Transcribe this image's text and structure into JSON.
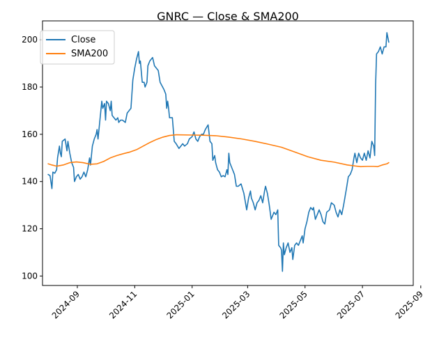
{
  "chart_data": {
    "type": "line",
    "title": "GNRC — Close & SMA200",
    "xlabel": "",
    "ylabel": "",
    "xlim": [
      "2024-07-26",
      "2025-08-24"
    ],
    "ylim": [
      96,
      208
    ],
    "grid": false,
    "legend_position": "top-left",
    "x_ticks": [
      "2024-09",
      "2024-11",
      "2025-01",
      "2025-03",
      "2025-05",
      "2025-07",
      "2025-09"
    ],
    "y_ticks": [
      100,
      120,
      140,
      160,
      180,
      200
    ],
    "series": [
      {
        "name": "Close",
        "color": "#1f77b4",
        "points": [
          [
            "2024-08-01",
            143
          ],
          [
            "2024-08-03",
            142.5
          ],
          [
            "2024-08-05",
            137
          ],
          [
            "2024-08-06",
            144
          ],
          [
            "2024-08-08",
            143.5
          ],
          [
            "2024-08-10",
            145
          ],
          [
            "2024-08-11",
            150
          ],
          [
            "2024-08-13",
            155
          ],
          [
            "2024-08-14",
            152
          ],
          [
            "2024-08-15",
            150.5
          ],
          [
            "2024-08-16",
            157
          ],
          [
            "2024-08-19",
            158
          ],
          [
            "2024-08-21",
            153
          ],
          [
            "2024-08-22",
            157
          ],
          [
            "2024-08-24",
            152
          ],
          [
            "2024-08-26",
            148
          ],
          [
            "2024-08-28",
            146
          ],
          [
            "2024-08-29",
            140
          ],
          [
            "2024-08-31",
            142
          ],
          [
            "2024-09-02",
            143
          ],
          [
            "2024-09-04",
            141
          ],
          [
            "2024-09-06",
            142
          ],
          [
            "2024-09-08",
            144
          ],
          [
            "2024-09-10",
            142
          ],
          [
            "2024-09-12",
            145
          ],
          [
            "2024-09-14",
            150
          ],
          [
            "2024-09-15",
            147
          ],
          [
            "2024-09-17",
            155
          ],
          [
            "2024-09-19",
            158
          ],
          [
            "2024-09-21",
            160
          ],
          [
            "2024-09-22",
            162
          ],
          [
            "2024-09-23",
            158
          ],
          [
            "2024-09-25",
            166
          ],
          [
            "2024-09-27",
            174
          ],
          [
            "2024-09-28",
            171
          ],
          [
            "2024-09-30",
            173
          ],
          [
            "2024-10-01",
            166
          ],
          [
            "2024-10-02",
            174
          ],
          [
            "2024-10-04",
            173
          ],
          [
            "2024-10-06",
            170
          ],
          [
            "2024-10-07",
            174
          ],
          [
            "2024-10-08",
            168
          ],
          [
            "2024-10-10",
            167
          ],
          [
            "2024-10-12",
            166
          ],
          [
            "2024-10-14",
            167
          ],
          [
            "2024-10-15",
            165
          ],
          [
            "2024-10-17",
            166
          ],
          [
            "2024-10-19",
            166
          ],
          [
            "2024-10-22",
            165
          ],
          [
            "2024-10-24",
            169
          ],
          [
            "2024-10-28",
            171
          ],
          [
            "2024-10-30",
            183
          ],
          [
            "2024-11-01",
            188
          ],
          [
            "2024-11-03",
            192
          ],
          [
            "2024-11-05",
            195
          ],
          [
            "2024-11-06",
            190
          ],
          [
            "2024-11-07",
            191
          ],
          [
            "2024-11-09",
            182
          ],
          [
            "2024-11-11",
            182
          ],
          [
            "2024-11-12",
            180
          ],
          [
            "2024-11-14",
            182
          ],
          [
            "2024-11-15",
            189
          ],
          [
            "2024-11-17",
            191
          ],
          [
            "2024-11-19",
            192
          ],
          [
            "2024-11-20",
            192.5
          ],
          [
            "2024-11-22",
            189
          ],
          [
            "2024-11-24",
            188
          ],
          [
            "2024-11-26",
            187
          ],
          [
            "2024-11-28",
            182
          ],
          [
            "2024-12-02",
            179
          ],
          [
            "2024-12-04",
            177
          ],
          [
            "2024-12-05",
            171
          ],
          [
            "2024-12-06",
            174
          ],
          [
            "2024-12-07",
            171
          ],
          [
            "2024-12-08",
            167
          ],
          [
            "2024-12-11",
            167
          ],
          [
            "2024-12-13",
            157
          ],
          [
            "2024-12-15",
            156
          ],
          [
            "2024-12-18",
            154
          ],
          [
            "2024-12-20",
            155
          ],
          [
            "2024-12-22",
            156
          ],
          [
            "2024-12-24",
            155
          ],
          [
            "2024-12-27",
            156
          ],
          [
            "2024-12-29",
            158
          ],
          [
            "2025-01-01",
            159
          ],
          [
            "2025-01-03",
            161
          ],
          [
            "2025-01-05",
            158
          ],
          [
            "2025-01-07",
            157
          ],
          [
            "2025-01-09",
            159
          ],
          [
            "2025-01-11",
            160
          ],
          [
            "2025-01-13",
            160
          ],
          [
            "2025-01-15",
            162
          ],
          [
            "2025-01-18",
            164
          ],
          [
            "2025-01-20",
            157
          ],
          [
            "2025-01-22",
            156
          ],
          [
            "2025-01-23",
            149
          ],
          [
            "2025-01-25",
            151
          ],
          [
            "2025-01-26",
            148
          ],
          [
            "2025-01-28",
            145
          ],
          [
            "2025-01-30",
            144
          ],
          [
            "2025-02-01",
            142
          ],
          [
            "2025-02-03",
            142.5
          ],
          [
            "2025-02-05",
            142
          ],
          [
            "2025-02-07",
            145
          ],
          [
            "2025-02-08",
            143
          ],
          [
            "2025-02-09",
            152
          ],
          [
            "2025-02-10",
            148
          ],
          [
            "2025-02-12",
            146
          ],
          [
            "2025-02-15",
            143
          ],
          [
            "2025-02-17",
            138
          ],
          [
            "2025-02-19",
            138
          ],
          [
            "2025-02-22",
            139
          ],
          [
            "2025-02-25",
            135
          ],
          [
            "2025-02-28",
            128
          ],
          [
            "2025-03-02",
            133
          ],
          [
            "2025-03-04",
            136
          ],
          [
            "2025-03-05",
            133
          ],
          [
            "2025-03-07",
            131
          ],
          [
            "2025-03-09",
            128
          ],
          [
            "2025-03-11",
            131
          ],
          [
            "2025-03-13",
            132
          ],
          [
            "2025-03-15",
            134
          ],
          [
            "2025-03-17",
            131
          ],
          [
            "2025-03-19",
            136
          ],
          [
            "2025-03-20",
            138
          ],
          [
            "2025-03-22",
            135
          ],
          [
            "2025-03-24",
            130
          ],
          [
            "2025-03-26",
            124
          ],
          [
            "2025-03-29",
            127
          ],
          [
            "2025-03-31",
            126
          ],
          [
            "2025-04-02",
            128
          ],
          [
            "2025-04-03",
            113
          ],
          [
            "2025-04-05",
            112
          ],
          [
            "2025-04-06",
            111
          ],
          [
            "2025-04-07",
            102
          ],
          [
            "2025-04-08",
            114
          ],
          [
            "2025-04-09",
            109
          ],
          [
            "2025-04-11",
            112
          ],
          [
            "2025-04-13",
            114
          ],
          [
            "2025-04-15",
            110
          ],
          [
            "2025-04-17",
            112
          ],
          [
            "2025-04-18",
            107
          ],
          [
            "2025-04-20",
            113
          ],
          [
            "2025-04-22",
            114
          ],
          [
            "2025-04-24",
            113
          ],
          [
            "2025-04-26",
            115
          ],
          [
            "2025-04-28",
            117
          ],
          [
            "2025-04-29",
            114
          ],
          [
            "2025-05-01",
            120
          ],
          [
            "2025-05-03",
            123
          ],
          [
            "2025-05-05",
            127
          ],
          [
            "2025-05-07",
            129
          ],
          [
            "2025-05-09",
            128
          ],
          [
            "2025-05-10",
            129
          ],
          [
            "2025-05-12",
            124
          ],
          [
            "2025-05-14",
            126
          ],
          [
            "2025-05-16",
            128
          ],
          [
            "2025-05-18",
            126
          ],
          [
            "2025-05-20",
            123
          ],
          [
            "2025-05-22",
            122
          ],
          [
            "2025-05-24",
            127
          ],
          [
            "2025-05-27",
            128
          ],
          [
            "2025-05-29",
            131
          ],
          [
            "2025-06-01",
            130
          ],
          [
            "2025-06-03",
            127
          ],
          [
            "2025-06-05",
            125
          ],
          [
            "2025-06-07",
            128
          ],
          [
            "2025-06-09",
            126
          ],
          [
            "2025-06-11",
            130
          ],
          [
            "2025-06-14",
            137
          ],
          [
            "2025-06-16",
            142
          ],
          [
            "2025-06-18",
            143
          ],
          [
            "2025-06-20",
            145
          ],
          [
            "2025-06-22",
            150
          ],
          [
            "2025-06-23",
            152
          ],
          [
            "2025-06-25",
            148
          ],
          [
            "2025-06-27",
            152
          ],
          [
            "2025-06-29",
            150
          ],
          [
            "2025-07-01",
            149
          ],
          [
            "2025-07-03",
            152
          ],
          [
            "2025-07-05",
            149
          ],
          [
            "2025-07-07",
            153
          ],
          [
            "2025-07-09",
            150
          ],
          [
            "2025-07-11",
            157
          ],
          [
            "2025-07-13",
            155
          ],
          [
            "2025-07-14",
            151
          ],
          [
            "2025-07-15",
            181
          ],
          [
            "2025-07-16",
            194
          ],
          [
            "2025-07-18",
            195
          ],
          [
            "2025-07-20",
            197
          ],
          [
            "2025-07-22",
            194
          ],
          [
            "2025-07-24",
            197
          ],
          [
            "2025-07-26",
            197
          ],
          [
            "2025-07-27",
            203
          ],
          [
            "2025-07-29",
            199
          ]
        ]
      },
      {
        "name": "SMA200",
        "color": "#ff7f0e",
        "points": [
          [
            "2024-08-01",
            147.5
          ],
          [
            "2024-08-05",
            147
          ],
          [
            "2024-08-10",
            146.5
          ],
          [
            "2024-08-17",
            147
          ],
          [
            "2024-08-24",
            148
          ],
          [
            "2024-08-31",
            148.3
          ],
          [
            "2024-09-07",
            148
          ],
          [
            "2024-09-15",
            147.3
          ],
          [
            "2024-09-22",
            147.5
          ],
          [
            "2024-09-29",
            148.5
          ],
          [
            "2024-10-06",
            150
          ],
          [
            "2024-10-13",
            151
          ],
          [
            "2024-10-20",
            151.8
          ],
          [
            "2024-10-27",
            152.5
          ],
          [
            "2024-11-03",
            153.5
          ],
          [
            "2024-11-10",
            155
          ],
          [
            "2024-11-17",
            156.5
          ],
          [
            "2024-11-24",
            157.8
          ],
          [
            "2024-12-01",
            158.8
          ],
          [
            "2024-12-08",
            159.5
          ],
          [
            "2024-12-15",
            159.8
          ],
          [
            "2024-12-29",
            159.7
          ],
          [
            "2025-01-12",
            159.6
          ],
          [
            "2025-01-26",
            159.4
          ],
          [
            "2025-02-09",
            158.8
          ],
          [
            "2025-02-23",
            158
          ],
          [
            "2025-03-09",
            157
          ],
          [
            "2025-03-23",
            155.8
          ],
          [
            "2025-04-06",
            154.5
          ],
          [
            "2025-04-20",
            152.5
          ],
          [
            "2025-05-04",
            150.5
          ],
          [
            "2025-05-18",
            149
          ],
          [
            "2025-06-01",
            148.2
          ],
          [
            "2025-06-15",
            147
          ],
          [
            "2025-06-29",
            146.3
          ],
          [
            "2025-07-06",
            146.4
          ],
          [
            "2025-07-13",
            146.4
          ],
          [
            "2025-07-17",
            146.3
          ],
          [
            "2025-07-22",
            147
          ],
          [
            "2025-07-27",
            147.5
          ],
          [
            "2025-07-29",
            148
          ]
        ]
      }
    ]
  }
}
